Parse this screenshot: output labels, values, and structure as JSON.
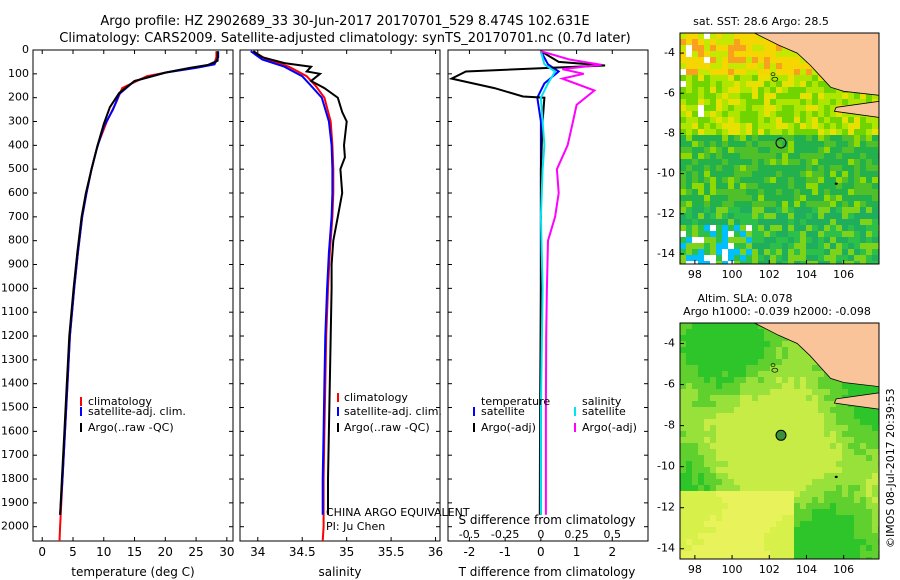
{
  "header": {
    "line1": "Argo profile: HZ 2902689_33 30-Jun-2017 20170701_529 8.474S 102.631E",
    "line2": "Climatology: CARS2009. Satellite-adjusted climatology: synTS_20170701.nc (0.7d later)"
  },
  "colors": {
    "climatology": "#ff0000",
    "satellite": "#0000ff",
    "argo": "#000000",
    "sal_sat": "#00e5ee",
    "sal_argo": "#ff00ff",
    "land": "#f9c49a"
  },
  "chart_data": [
    {
      "type": "line",
      "panel": "temperature",
      "xlabel": "temperature (deg C)",
      "ylabel": "",
      "xlim": [
        -1.5,
        31
      ],
      "ylim": [
        2060,
        0
      ],
      "xticks": [
        0,
        5,
        10,
        15,
        20,
        25,
        30
      ],
      "yticks": [
        0,
        100,
        200,
        300,
        400,
        500,
        600,
        700,
        800,
        900,
        1000,
        1100,
        1200,
        1300,
        1400,
        1500,
        1600,
        1700,
        1800,
        1900,
        2000
      ],
      "legend": [
        "climatology",
        "satellite-adj. clim.",
        "Argo(..raw -QC)"
      ],
      "series": [
        {
          "name": "climatology",
          "color": "#ff0000",
          "points": [
            [
              28.3,
              5
            ],
            [
              28.3,
              30
            ],
            [
              28,
              55
            ],
            [
              26,
              70
            ],
            [
              22,
              85
            ],
            [
              17,
              110
            ],
            [
              13,
              160
            ],
            [
              12,
              220
            ],
            [
              10.5,
              300
            ],
            [
              9,
              400
            ],
            [
              8,
              500
            ],
            [
              7.2,
              600
            ],
            [
              6.5,
              700
            ],
            [
              5.8,
              850
            ],
            [
              5.2,
              1000
            ],
            [
              4.5,
              1200
            ],
            [
              4.1,
              1400
            ],
            [
              3.7,
              1600
            ],
            [
              3.3,
              1800
            ],
            [
              2.9,
              2000
            ],
            [
              2.8,
              2060
            ]
          ]
        },
        {
          "name": "satellite-adj. clim.",
          "color": "#0000ff",
          "points": [
            [
              28.6,
              5
            ],
            [
              28.6,
              30
            ],
            [
              28,
              60
            ],
            [
              25,
              75
            ],
            [
              20,
              95
            ],
            [
              15,
              130
            ],
            [
              12.5,
              185
            ],
            [
              11.5,
              250
            ],
            [
              10,
              320
            ],
            [
              8.8,
              420
            ],
            [
              8,
              500
            ],
            [
              7.2,
              600
            ],
            [
              6.5,
              700
            ],
            [
              5.8,
              850
            ],
            [
              5.2,
              1000
            ],
            [
              4.5,
              1200
            ],
            [
              4.1,
              1400
            ],
            [
              3.7,
              1600
            ],
            [
              3.3,
              1800
            ],
            [
              2.9,
              1950
            ]
          ]
        },
        {
          "name": "Argo(..raw -QC)",
          "color": "#000000",
          "points": [
            [
              28.5,
              5
            ],
            [
              28.5,
              45
            ],
            [
              27,
              62
            ],
            [
              24,
              75
            ],
            [
              20,
              95
            ],
            [
              15,
              130
            ],
            [
              12.5,
              180
            ],
            [
              11,
              240
            ],
            [
              10,
              310
            ],
            [
              9,
              400
            ],
            [
              8,
              500
            ],
            [
              7.1,
              600
            ],
            [
              6.4,
              700
            ],
            [
              5.7,
              850
            ],
            [
              5.1,
              1000
            ],
            [
              4.4,
              1200
            ],
            [
              4,
              1400
            ],
            [
              3.6,
              1600
            ],
            [
              3.2,
              1800
            ],
            [
              2.9,
              1950
            ]
          ]
        }
      ]
    },
    {
      "type": "line",
      "panel": "salinity",
      "xlabel": "salinity",
      "ylabel": "",
      "xlim": [
        33.8,
        36.05
      ],
      "ylim": [
        2060,
        0
      ],
      "xticks": [
        34,
        34.5,
        35,
        35.5,
        36
      ],
      "legend": [
        "climatology",
        "satellite-adj. clim.",
        "Argo(..raw -QC)"
      ],
      "series": [
        {
          "name": "climatology",
          "color": "#ff0000",
          "points": [
            [
              33.95,
              5
            ],
            [
              34.1,
              40
            ],
            [
              34.35,
              70
            ],
            [
              34.55,
              110
            ],
            [
              34.65,
              150
            ],
            [
              34.75,
              200
            ],
            [
              34.82,
              300
            ],
            [
              34.84,
              400
            ],
            [
              34.85,
              500
            ],
            [
              34.85,
              600
            ],
            [
              34.84,
              700
            ],
            [
              34.81,
              850
            ],
            [
              34.79,
              1000
            ],
            [
              34.77,
              1200
            ],
            [
              34.76,
              1400
            ],
            [
              34.75,
              1600
            ],
            [
              34.74,
              1800
            ],
            [
              34.74,
              2000
            ],
            [
              34.73,
              2060
            ]
          ]
        },
        {
          "name": "satellite-adj. clim.",
          "color": "#0000ff",
          "points": [
            [
              33.92,
              5
            ],
            [
              34.05,
              40
            ],
            [
              34.3,
              70
            ],
            [
              34.5,
              110
            ],
            [
              34.6,
              150
            ],
            [
              34.72,
              200
            ],
            [
              34.8,
              300
            ],
            [
              34.83,
              400
            ],
            [
              34.84,
              500
            ],
            [
              34.84,
              600
            ],
            [
              34.83,
              700
            ],
            [
              34.8,
              850
            ],
            [
              34.78,
              1000
            ],
            [
              34.76,
              1200
            ],
            [
              34.75,
              1400
            ],
            [
              34.74,
              1600
            ],
            [
              34.73,
              1800
            ],
            [
              34.73,
              1950
            ]
          ]
        },
        {
          "name": "Argo(..raw -QC)",
          "color": "#000000",
          "points": [
            [
              33.95,
              5
            ],
            [
              34.05,
              30
            ],
            [
              34.3,
              55
            ],
            [
              34.6,
              70
            ],
            [
              34.55,
              90
            ],
            [
              34.7,
              100
            ],
            [
              34.6,
              130
            ],
            [
              34.75,
              160
            ],
            [
              34.9,
              200
            ],
            [
              34.95,
              260
            ],
            [
              35.0,
              300
            ],
            [
              34.97,
              400
            ],
            [
              34.98,
              450
            ],
            [
              34.93,
              500
            ],
            [
              34.95,
              600
            ],
            [
              34.9,
              700
            ],
            [
              34.85,
              800
            ],
            [
              34.83,
              900
            ],
            [
              34.83,
              1000
            ],
            [
              34.82,
              1200
            ],
            [
              34.81,
              1400
            ],
            [
              34.8,
              1600
            ],
            [
              34.79,
              1800
            ],
            [
              34.79,
              1950
            ]
          ]
        }
      ]
    },
    {
      "type": "line",
      "panel": "difference",
      "xlabel": "T difference from climatology",
      "xlabel2": "S difference from climatology",
      "xlim": [
        -2.6,
        3.0
      ],
      "ylim": [
        2060,
        0
      ],
      "xticks": [
        -2,
        -1,
        0,
        1,
        2
      ],
      "xticks2": [
        -0.5,
        -0.25,
        0,
        0.25,
        0.5
      ],
      "legend_t_title": "temperature",
      "legend_s_title": "salinity",
      "legend": [
        "satellite",
        "Argo(-adj)"
      ],
      "series": [
        {
          "name": "T satellite",
          "color": "#0000ff",
          "points": [
            [
              0,
              5
            ],
            [
              0.2,
              60
            ],
            [
              0.5,
              90
            ],
            [
              0.1,
              140
            ],
            [
              -0.1,
              200
            ],
            [
              0,
              300
            ],
            [
              0,
              500
            ],
            [
              0,
              1000
            ],
            [
              0,
              1500
            ],
            [
              0,
              1950
            ]
          ]
        },
        {
          "name": "T Argo(-adj)",
          "color": "#000000",
          "points": [
            [
              0,
              5
            ],
            [
              0.5,
              50
            ],
            [
              1.8,
              65
            ],
            [
              -2.1,
              90
            ],
            [
              -2.5,
              120
            ],
            [
              -1.3,
              160
            ],
            [
              -0.5,
              195
            ],
            [
              0.1,
              200
            ],
            [
              0.05,
              300
            ],
            [
              0,
              500
            ],
            [
              0,
              1000
            ],
            [
              -0.02,
              1500
            ],
            [
              -0.03,
              1950
            ]
          ]
        },
        {
          "name": "S satellite",
          "color": "#00e5ee",
          "points": [
            [
              0,
              5
            ],
            [
              0.1,
              60
            ],
            [
              0.4,
              90
            ],
            [
              0.2,
              140
            ],
            [
              0,
              200
            ],
            [
              0.05,
              300
            ],
            [
              0.1,
              400
            ],
            [
              0.05,
              500
            ],
            [
              0,
              700
            ],
            [
              0.05,
              1000
            ],
            [
              0,
              1500
            ],
            [
              0,
              1950
            ]
          ]
        },
        {
          "name": "S Argo(-adj)",
          "color": "#ff00ff",
          "points": [
            [
              0,
              5
            ],
            [
              0.8,
              40
            ],
            [
              1.7,
              62
            ],
            [
              0.6,
              80
            ],
            [
              1.2,
              100
            ],
            [
              0.6,
              120
            ],
            [
              1.5,
              170
            ],
            [
              1.0,
              230
            ],
            [
              0.9,
              300
            ],
            [
              0.75,
              400
            ],
            [
              0.45,
              500
            ],
            [
              0.5,
              600
            ],
            [
              0.4,
              700
            ],
            [
              0.2,
              800
            ],
            [
              0.17,
              1000
            ],
            [
              0.15,
              1200
            ],
            [
              0.14,
              1500
            ],
            [
              0.14,
              1950
            ]
          ]
        }
      ],
      "annotations": [
        "CHINA ARGO EQUIVALENT",
        "PI: Ju Chen"
      ]
    },
    {
      "type": "heatmap",
      "panel": "sst_map",
      "title": "sat. SST: 28.6 Argo: 28.5",
      "xlim": [
        97.2,
        107.9
      ],
      "ylim": [
        -14.5,
        -3
      ],
      "xticks": [
        98,
        100,
        102,
        104,
        106
      ],
      "yticks": [
        -4,
        -6,
        -8,
        -10,
        -12,
        -14
      ],
      "marker": [
        102.631,
        -8.474
      ]
    },
    {
      "type": "heatmap",
      "panel": "sla_map",
      "title": "Altim. SLA: 0.078",
      "subtitle": "Argo h1000: -0.039 h2000: -0.098",
      "xlim": [
        97.2,
        107.9
      ],
      "ylim": [
        -14.5,
        -3
      ],
      "xticks": [
        98,
        100,
        102,
        104,
        106
      ],
      "yticks": [
        -4,
        -6,
        -8,
        -10,
        -12,
        -14
      ],
      "marker": [
        102.631,
        -8.474
      ]
    }
  ],
  "footer": {
    "stamp": "©IMOS 08-Jul-2017 20:39:53"
  }
}
